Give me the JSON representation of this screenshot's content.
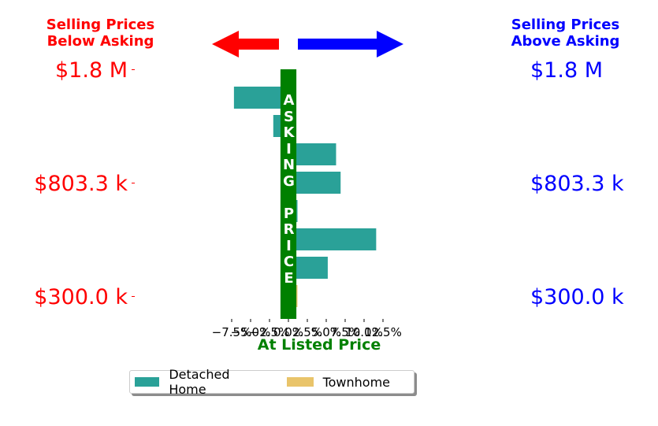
{
  "header": {
    "left_line1": "Selling Prices",
    "left_line2": "Below Asking",
    "right_line1": "Selling Prices",
    "right_line2": "Above Asking",
    "left_color": "#ff0000",
    "right_color": "#0000ff"
  },
  "price_labels": [
    "$1.8 M",
    "$803.3 k",
    "$300.0 k"
  ],
  "asking_band": {
    "letters": [
      "A",
      "S",
      "K",
      "I",
      "N",
      "G",
      "",
      "P",
      "R",
      "I",
      "C",
      "E"
    ],
    "color": "#008000",
    "x_range": [
      -1.0,
      1.0
    ]
  },
  "chart_data": {
    "type": "bar",
    "orientation": "horizontal",
    "xlabel": "At Listed Price",
    "xlim": [
      -8.5,
      13.5
    ],
    "x_ticks": [
      -7.5,
      -5.0,
      -2.5,
      0.0,
      2.5,
      5.0,
      7.5,
      10.0,
      12.5
    ],
    "x_tick_labels": [
      "−7.5%",
      "−5.0%",
      "−2.5%",
      "0.0%",
      "2.5%",
      "5.0%",
      "7.5%",
      "10.0%",
      "12.5%"
    ],
    "y_tick_labels": [
      "$1.8 M",
      "$803.3 k",
      "$300.0 k"
    ],
    "legend_position": "bottom",
    "series": [
      {
        "name": "Detached Home",
        "color": "#2aa198",
        "values": [
          -7.2,
          -2.0,
          6.3,
          6.9,
          1.2,
          11.6,
          5.2
        ]
      },
      {
        "name": "Townhome",
        "color": "#e9c46a",
        "values": [
          1.2
        ]
      }
    ]
  }
}
